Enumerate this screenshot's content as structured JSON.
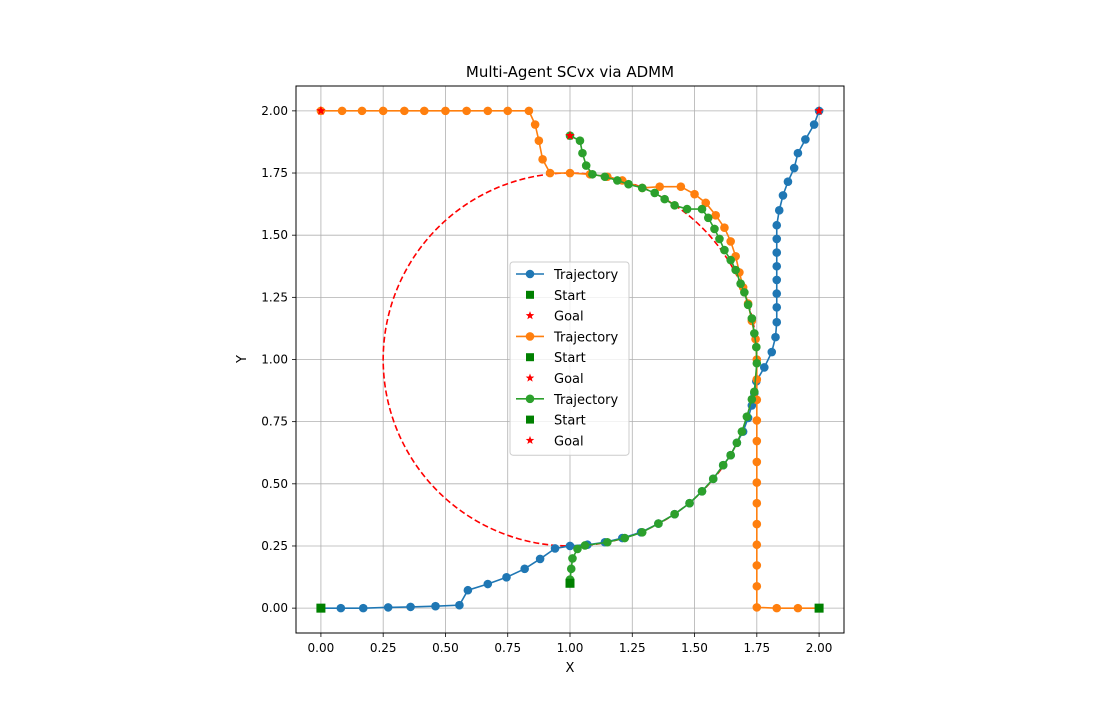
{
  "chart_data": {
    "type": "line",
    "title": "Multi-Agent SCvx via ADMM",
    "xlabel": "X",
    "ylabel": "Y",
    "xlim": [
      -0.1,
      2.1
    ],
    "ylim": [
      -0.1,
      2.1
    ],
    "grid": true,
    "legend_position": "center",
    "x_ticks": [
      "0.00",
      "0.25",
      "0.50",
      "0.75",
      "1.00",
      "1.25",
      "1.50",
      "1.75",
      "2.00"
    ],
    "y_ticks": [
      "0.00",
      "0.25",
      "0.50",
      "0.75",
      "1.00",
      "1.25",
      "1.50",
      "1.75",
      "2.00"
    ],
    "obstacle": {
      "center": [
        1.0,
        1.0
      ],
      "radius": 0.75,
      "color": "#ff0000",
      "style": "dashed"
    },
    "series": [
      {
        "name": "Trajectory",
        "color": "#1f77b4",
        "start_label": "Start",
        "goal_label": "Goal",
        "start": [
          0.0,
          0.0
        ],
        "goal": [
          2.0,
          2.0
        ],
        "points": [
          [
            0.0,
            0.0
          ],
          [
            0.08,
            0.0
          ],
          [
            0.17,
            0.0
          ],
          [
            0.27,
            0.003
          ],
          [
            0.36,
            0.005
          ],
          [
            0.46,
            0.008
          ],
          [
            0.556,
            0.012
          ],
          [
            0.59,
            0.072
          ],
          [
            0.67,
            0.097
          ],
          [
            0.745,
            0.124
          ],
          [
            0.818,
            0.158
          ],
          [
            0.88,
            0.198
          ],
          [
            0.94,
            0.24
          ],
          [
            1.0,
            0.25
          ],
          [
            1.07,
            0.255
          ],
          [
            1.14,
            0.265
          ],
          [
            1.21,
            0.282
          ],
          [
            1.285,
            0.305
          ],
          [
            1.355,
            0.34
          ],
          [
            1.42,
            0.378
          ],
          [
            1.48,
            0.422
          ],
          [
            1.53,
            0.47
          ],
          [
            1.575,
            0.52
          ],
          [
            1.615,
            0.575
          ],
          [
            1.645,
            0.615
          ],
          [
            1.67,
            0.665
          ],
          [
            1.695,
            0.71
          ],
          [
            1.715,
            0.765
          ],
          [
            1.73,
            0.815
          ],
          [
            1.74,
            0.865
          ],
          [
            1.748,
            0.912
          ],
          [
            1.78,
            0.968
          ],
          [
            1.81,
            1.03
          ],
          [
            1.825,
            1.09
          ],
          [
            1.83,
            1.15
          ],
          [
            1.83,
            1.21
          ],
          [
            1.83,
            1.265
          ],
          [
            1.83,
            1.32
          ],
          [
            1.83,
            1.375
          ],
          [
            1.83,
            1.43
          ],
          [
            1.83,
            1.485
          ],
          [
            1.83,
            1.54
          ],
          [
            1.84,
            1.6
          ],
          [
            1.855,
            1.66
          ],
          [
            1.875,
            1.715
          ],
          [
            1.9,
            1.77
          ],
          [
            1.915,
            1.83
          ],
          [
            1.945,
            1.885
          ],
          [
            1.98,
            1.945
          ],
          [
            2.0,
            2.0
          ]
        ]
      },
      {
        "name": "Trajectory",
        "color": "#ff7f0e",
        "start_label": "Start",
        "goal_label": "Goal",
        "start": [
          2.0,
          0.0
        ],
        "goal": [
          0.0,
          2.0
        ],
        "points": [
          [
            2.0,
            0.0
          ],
          [
            1.915,
            0.0
          ],
          [
            1.83,
            0.0
          ],
          [
            1.75,
            0.003
          ],
          [
            1.75,
            0.088
          ],
          [
            1.75,
            0.172
          ],
          [
            1.75,
            0.255
          ],
          [
            1.75,
            0.338
          ],
          [
            1.75,
            0.422
          ],
          [
            1.75,
            0.505
          ],
          [
            1.75,
            0.588
          ],
          [
            1.75,
            0.672
          ],
          [
            1.75,
            0.755
          ],
          [
            1.75,
            0.838
          ],
          [
            1.75,
            0.92
          ],
          [
            1.75,
            1.0
          ],
          [
            1.745,
            1.082
          ],
          [
            1.73,
            1.155
          ],
          [
            1.715,
            1.225
          ],
          [
            1.695,
            1.29
          ],
          [
            1.68,
            1.35
          ],
          [
            1.665,
            1.415
          ],
          [
            1.645,
            1.475
          ],
          [
            1.62,
            1.53
          ],
          [
            1.585,
            1.58
          ],
          [
            1.545,
            1.63
          ],
          [
            1.5,
            1.665
          ],
          [
            1.445,
            1.695
          ],
          [
            1.36,
            1.695
          ],
          [
            1.29,
            1.69
          ],
          [
            1.21,
            1.72
          ],
          [
            1.15,
            1.735
          ],
          [
            1.08,
            1.745
          ],
          [
            1.0,
            1.75
          ],
          [
            0.92,
            1.75
          ],
          [
            0.89,
            1.805
          ],
          [
            0.875,
            1.88
          ],
          [
            0.86,
            1.945
          ],
          [
            0.835,
            2.0
          ],
          [
            0.75,
            2.0
          ],
          [
            0.67,
            2.0
          ],
          [
            0.585,
            2.0
          ],
          [
            0.5,
            2.0
          ],
          [
            0.415,
            2.0
          ],
          [
            0.335,
            2.0
          ],
          [
            0.25,
            2.0
          ],
          [
            0.165,
            2.0
          ],
          [
            0.085,
            2.0
          ],
          [
            0.0,
            2.0
          ]
        ]
      },
      {
        "name": "Trajectory",
        "color": "#2ca02c",
        "start_label": "Start",
        "goal_label": "Goal",
        "start": [
          1.0,
          0.1
        ],
        "goal": [
          1.0,
          1.9
        ],
        "points": [
          [
            1.0,
            0.1
          ],
          [
            1.0,
            0.115
          ],
          [
            1.005,
            0.158
          ],
          [
            1.01,
            0.2
          ],
          [
            1.03,
            0.238
          ],
          [
            1.06,
            0.252
          ],
          [
            1.15,
            0.265
          ],
          [
            1.22,
            0.282
          ],
          [
            1.29,
            0.305
          ],
          [
            1.355,
            0.34
          ],
          [
            1.42,
            0.378
          ],
          [
            1.48,
            0.422
          ],
          [
            1.53,
            0.47
          ],
          [
            1.575,
            0.52
          ],
          [
            1.615,
            0.575
          ],
          [
            1.645,
            0.615
          ],
          [
            1.67,
            0.665
          ],
          [
            1.69,
            0.71
          ],
          [
            1.71,
            0.77
          ],
          [
            1.73,
            0.84
          ],
          [
            1.74,
            0.87
          ],
          [
            1.75,
            0.985
          ],
          [
            1.748,
            1.05
          ],
          [
            1.74,
            1.105
          ],
          [
            1.73,
            1.165
          ],
          [
            1.715,
            1.22
          ],
          [
            1.7,
            1.27
          ],
          [
            1.685,
            1.305
          ],
          [
            1.665,
            1.36
          ],
          [
            1.645,
            1.4
          ],
          [
            1.62,
            1.44
          ],
          [
            1.6,
            1.485
          ],
          [
            1.58,
            1.525
          ],
          [
            1.555,
            1.57
          ],
          [
            1.53,
            1.605
          ],
          [
            1.47,
            1.605
          ],
          [
            1.42,
            1.62
          ],
          [
            1.38,
            1.645
          ],
          [
            1.34,
            1.67
          ],
          [
            1.29,
            1.69
          ],
          [
            1.235,
            1.705
          ],
          [
            1.19,
            1.72
          ],
          [
            1.14,
            1.735
          ],
          [
            1.09,
            1.745
          ],
          [
            1.065,
            1.78
          ],
          [
            1.05,
            1.83
          ],
          [
            1.04,
            1.88
          ],
          [
            1.0,
            1.9
          ]
        ]
      }
    ],
    "legend": [
      {
        "label": "Trajectory",
        "kind": "line",
        "color": "#1f77b4"
      },
      {
        "label": "Start",
        "kind": "start",
        "color": "#008000"
      },
      {
        "label": "Goal",
        "kind": "goal",
        "color": "#ff0000"
      },
      {
        "label": "Trajectory",
        "kind": "line",
        "color": "#ff7f0e"
      },
      {
        "label": "Start",
        "kind": "start",
        "color": "#008000"
      },
      {
        "label": "Goal",
        "kind": "goal",
        "color": "#ff0000"
      },
      {
        "label": "Trajectory",
        "kind": "line",
        "color": "#2ca02c"
      },
      {
        "label": "Start",
        "kind": "start",
        "color": "#008000"
      },
      {
        "label": "Goal",
        "kind": "goal",
        "color": "#ff0000"
      }
    ]
  }
}
